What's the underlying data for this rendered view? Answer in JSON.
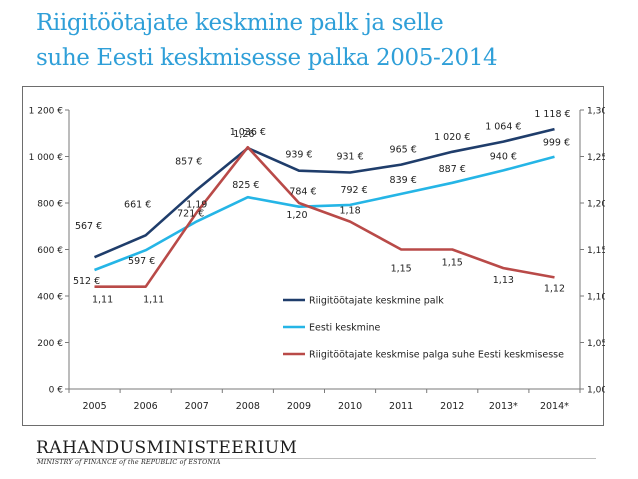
{
  "page": {
    "title": "Riigitöötajate keskmine palk ja selle\nsuhe Eesti keskmisesse palka 2005-2014"
  },
  "footer": {
    "logo": "RAHANDUSMINISTEERIUM",
    "subtitle": "MINISTRY of FINANCE of the REPUBLIC of ESTONIA"
  },
  "colors": {
    "series_public": "#1f3d6b",
    "series_estonia": "#25b5e6",
    "series_ratio": "#b94a48",
    "axis": "#7a7a7a",
    "frame": "#6d6d6d"
  },
  "chart_data": {
    "type": "line",
    "x": [
      "2005",
      "2006",
      "2007",
      "2008",
      "2009",
      "2010",
      "2011",
      "2012",
      "2013*",
      "2014*"
    ],
    "y_left": {
      "ticks": [
        "0 €",
        "200 €",
        "400 €",
        "600 €",
        "800 €",
        "1 000 €",
        "1 200 €"
      ],
      "range": [
        0,
        1200
      ]
    },
    "y_right": {
      "ticks": [
        "1,00",
        "1,05",
        "1,10",
        "1,15",
        "1,20",
        "1,25",
        "1,30"
      ],
      "range": [
        1.0,
        1.3
      ]
    },
    "series": [
      {
        "name": "Riigitöötajate keskmine palk",
        "axis": "left",
        "values": [
          567,
          661,
          857,
          1036,
          939,
          931,
          965,
          1020,
          1064,
          1118
        ],
        "labels": [
          "567 €",
          "661 €",
          "857 €",
          "1 036 €",
          "939 €",
          "931 €",
          "965 €",
          "1 020 €",
          "1 064 €",
          "1 118 €"
        ]
      },
      {
        "name": "Eesti keskmine",
        "axis": "left",
        "values": [
          512,
          597,
          721,
          825,
          784,
          792,
          839,
          887,
          940,
          999
        ],
        "labels": [
          "512 €",
          "597 €",
          "721 €",
          "825 €",
          "784 €",
          "792 €",
          "839 €",
          "887 €",
          "940 €",
          "999 €"
        ]
      },
      {
        "name": "Riigitöötajate keskmise palga suhe Eesti keskmisesse",
        "axis": "right",
        "values": [
          1.11,
          1.11,
          1.19,
          1.26,
          1.2,
          1.18,
          1.15,
          1.15,
          1.13,
          1.12
        ],
        "labels": [
          "1,11",
          "1,11",
          "1,19",
          "1,26",
          "1,20",
          "1,18",
          "1,15",
          "1,15",
          "1,13",
          "1,12"
        ]
      }
    ],
    "grid": false,
    "legend_position": "center-right"
  }
}
